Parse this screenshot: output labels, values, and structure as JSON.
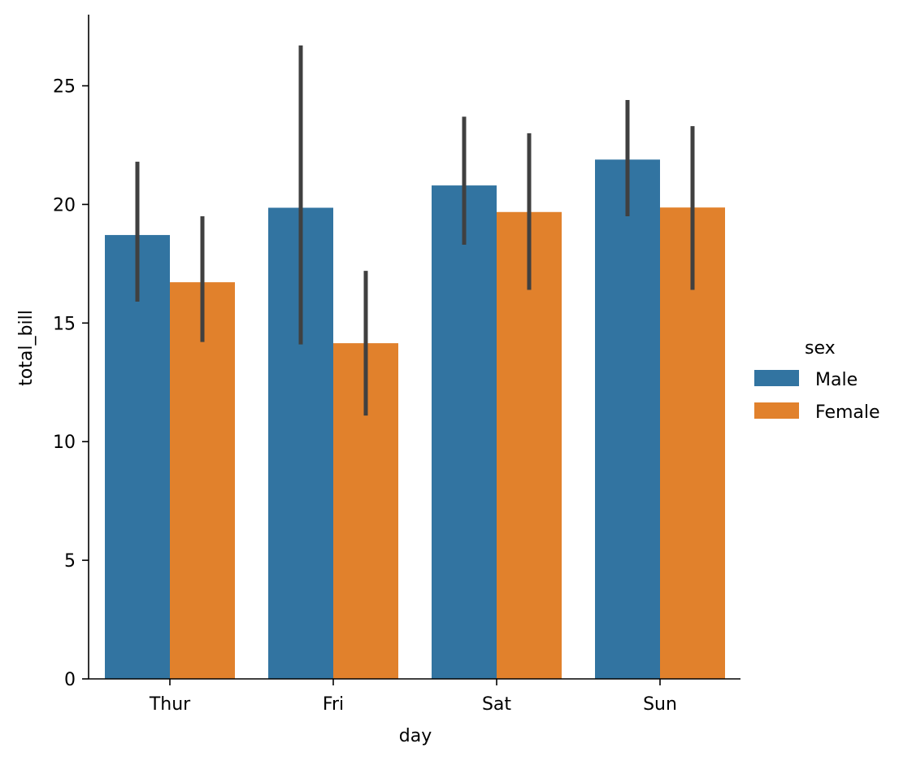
{
  "chart_data": {
    "type": "bar",
    "title": "",
    "xlabel": "day",
    "ylabel": "total_bill",
    "categories": [
      "Thur",
      "Fri",
      "Sat",
      "Sun"
    ],
    "ylim": [
      0,
      28
    ],
    "yticks": [
      0,
      5,
      10,
      15,
      20,
      25
    ],
    "ytick_labels": [
      "0",
      "5",
      "10",
      "15",
      "20",
      "25"
    ],
    "grid": false,
    "legend_title": "sex",
    "legend_position": "center-right",
    "series": [
      {
        "name": "Male",
        "color": "#3274a1",
        "values": [
          18.71,
          19.86,
          20.8,
          21.89
        ],
        "ci_low": [
          15.9,
          14.1,
          18.3,
          19.5
        ],
        "ci_high": [
          21.8,
          26.7,
          23.7,
          24.4
        ]
      },
      {
        "name": "Female",
        "color": "#e1812c",
        "values": [
          16.72,
          14.15,
          19.68,
          19.87
        ],
        "ci_low": [
          14.2,
          11.1,
          16.4,
          16.4
        ],
        "ci_high": [
          19.5,
          17.2,
          23.0,
          23.3
        ]
      }
    ],
    "errorbar_color": "#404040"
  }
}
